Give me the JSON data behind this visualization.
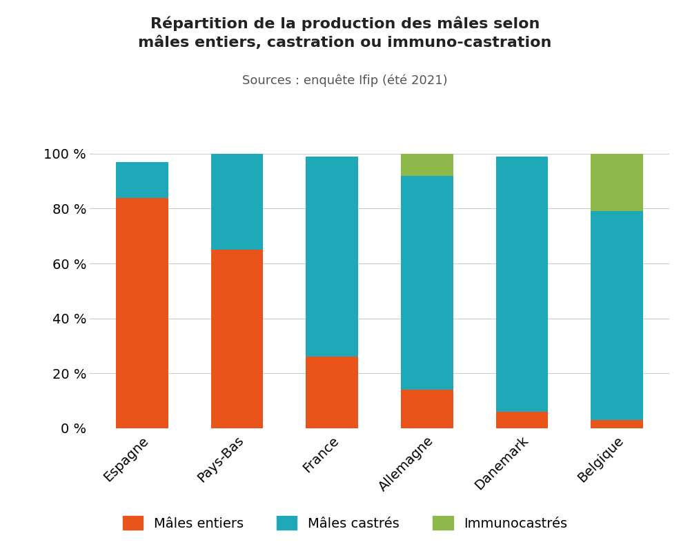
{
  "title_line1": "Répartition de la production des mâles selon",
  "title_line2": "mâles entiers, castration ou immuno-castration",
  "subtitle": "Sources : enquête Ifip (été 2021)",
  "categories": [
    "Espagne",
    "Pays-Bas",
    "France",
    "Allemagne",
    "Danemark",
    "Belgique"
  ],
  "males_entiers": [
    84,
    65,
    26,
    14,
    6,
    3
  ],
  "males_castres": [
    13,
    35,
    73,
    78,
    93,
    76
  ],
  "immunocasters": [
    0,
    0,
    0,
    8,
    0,
    21
  ],
  "color_entiers": "#E8541A",
  "color_castres": "#1FA8B8",
  "color_immuno": "#8DB84A",
  "background": "#FFFFFF",
  "legend_entiers": "Mâles entiers",
  "legend_castres": "Mâles castrés",
  "legend_immuno": "Immunocastrés",
  "yticks": [
    0,
    20,
    40,
    60,
    80,
    100
  ],
  "ylim": [
    0,
    104
  ],
  "bar_width": 0.55
}
